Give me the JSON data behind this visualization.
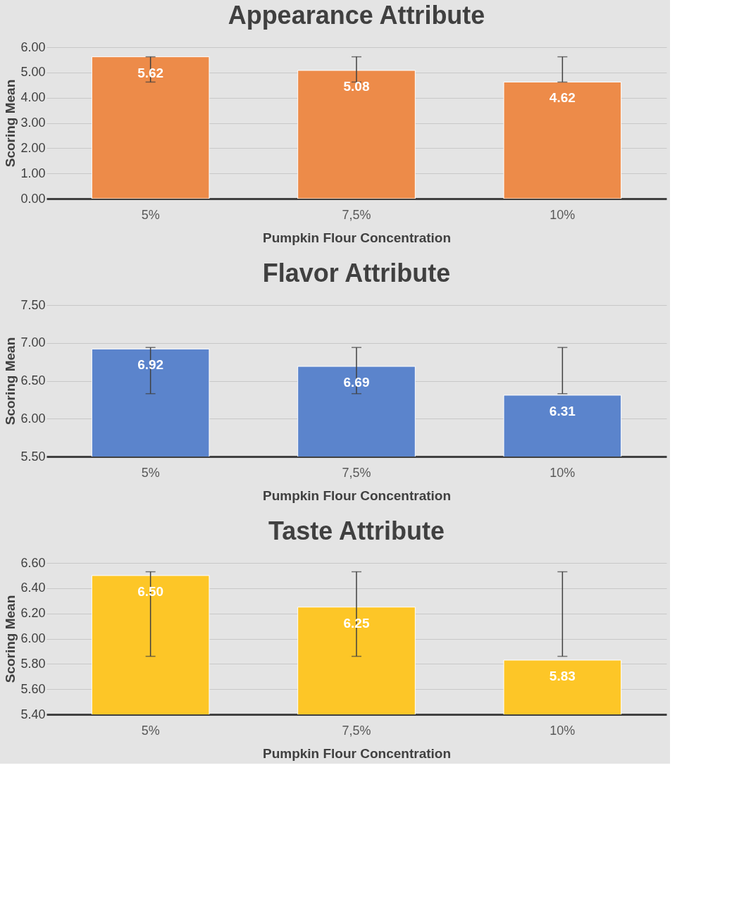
{
  "chart_data": [
    {
      "type": "bar",
      "title": "Appearance Attribute",
      "xlabel": "Pumpkin Flour Concentration",
      "ylabel": "Scoring Mean",
      "categories": [
        "5%",
        "7,5%",
        "10%"
      ],
      "values": [
        5.62,
        5.08,
        4.62
      ],
      "value_labels": [
        "5.62",
        "5.08",
        "4.62"
      ],
      "color": "#ed8b49",
      "errors": [
        [
          4.62,
          5.62
        ],
        [
          4.62,
          5.62
        ],
        [
          4.62,
          5.62
        ]
      ],
      "ylim": [
        0,
        6
      ],
      "yticks": [
        {
          "value": 0,
          "label": "0.00"
        },
        {
          "value": 1,
          "label": "1.00"
        },
        {
          "value": 2,
          "label": "2.00"
        },
        {
          "value": 3,
          "label": "3.00"
        },
        {
          "value": 4,
          "label": "4.00"
        },
        {
          "value": 5,
          "label": "5.00"
        },
        {
          "value": 6,
          "label": "6.00"
        }
      ],
      "grid": "y"
    },
    {
      "type": "bar",
      "title": "Flavor Attribute",
      "xlabel": "Pumpkin Flour Concentration",
      "ylabel": "Scoring Mean",
      "categories": [
        "5%",
        "7,5%",
        "10%"
      ],
      "values": [
        6.92,
        6.69,
        6.31
      ],
      "value_labels": [
        "6.92",
        "6.69",
        "6.31"
      ],
      "color": "#5b84cc",
      "errors": [
        [
          6.33,
          6.94
        ],
        [
          6.33,
          6.94
        ],
        [
          6.33,
          6.94
        ]
      ],
      "ylim": [
        5.5,
        7.5
      ],
      "yticks": [
        {
          "value": 5.5,
          "label": "5.50"
        },
        {
          "value": 6,
          "label": "6.00"
        },
        {
          "value": 6.5,
          "label": "6.50"
        },
        {
          "value": 7,
          "label": "7.00"
        },
        {
          "value": 7.5,
          "label": "7.50"
        }
      ],
      "grid": "y"
    },
    {
      "type": "bar",
      "title": "Taste Attribute",
      "xlabel": "Pumpkin Flour Concentration",
      "ylabel": "Scoring Mean",
      "categories": [
        "5%",
        "7,5%",
        "10%"
      ],
      "values": [
        6.5,
        6.25,
        5.83
      ],
      "value_labels": [
        "6.50",
        "6.25",
        "5.83"
      ],
      "color": "#fdc627",
      "errors": [
        [
          5.86,
          6.53
        ],
        [
          5.86,
          6.53
        ],
        [
          5.86,
          6.53
        ]
      ],
      "ylim": [
        5.4,
        6.6
      ],
      "yticks": [
        {
          "value": 5.4,
          "label": "5.40"
        },
        {
          "value": 5.6,
          "label": "5.60"
        },
        {
          "value": 5.8,
          "label": "5.80"
        },
        {
          "value": 6,
          "label": "6.00"
        },
        {
          "value": 6.2,
          "label": "6.20"
        },
        {
          "value": 6.4,
          "label": "6.40"
        },
        {
          "value": 6.6,
          "label": "6.60"
        }
      ],
      "grid": "y"
    }
  ]
}
